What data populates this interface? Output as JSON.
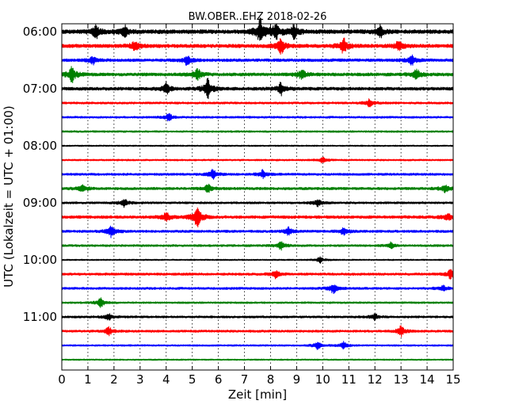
{
  "chart_data": {
    "type": "line",
    "title": "BW.OBER..EHZ 2018-02-26",
    "xlabel": "Zeit  [min]",
    "ylabel": "UTC (Lokalzeit = UTC + 01:00)",
    "xlim": [
      0,
      15
    ],
    "xticks": [
      "0",
      "1",
      "2",
      "3",
      "4",
      "5",
      "6",
      "7",
      "8",
      "9",
      "10",
      "11",
      "12",
      "13",
      "14",
      "15"
    ],
    "yticks": [
      {
        "label": "06:00",
        "row": 0
      },
      {
        "label": "07:00",
        "row": 4
      },
      {
        "label": "08:00",
        "row": 8
      },
      {
        "label": "09:00",
        "row": 12
      },
      {
        "label": "10:00",
        "row": 16
      },
      {
        "label": "11:00",
        "row": 20
      }
    ],
    "row_minutes": 15,
    "row_colors": [
      "#000000",
      "#ff0000",
      "#0000ff",
      "#008000"
    ],
    "grid": {
      "x": true,
      "y": false
    },
    "series": [
      {
        "start": "06:00",
        "amp": 0.28,
        "events": [
          {
            "t": 1.3,
            "a": 0.7
          },
          {
            "t": 2.4,
            "a": 0.6
          },
          {
            "t": 7.6,
            "a": 1.3
          },
          {
            "t": 8.2,
            "a": 0.9
          },
          {
            "t": 8.9,
            "a": 0.7
          },
          {
            "t": 12.2,
            "a": 0.6
          }
        ]
      },
      {
        "start": "06:15",
        "amp": 0.25,
        "events": [
          {
            "t": 2.8,
            "a": 0.5
          },
          {
            "t": 8.4,
            "a": 0.8
          },
          {
            "t": 10.8,
            "a": 0.8
          },
          {
            "t": 12.9,
            "a": 0.5
          }
        ]
      },
      {
        "start": "06:30",
        "amp": 0.2,
        "events": [
          {
            "t": 1.2,
            "a": 0.4
          },
          {
            "t": 4.8,
            "a": 0.5
          },
          {
            "t": 13.4,
            "a": 0.5
          }
        ]
      },
      {
        "start": "06:45",
        "amp": 0.22,
        "events": [
          {
            "t": 0.4,
            "a": 0.8
          },
          {
            "t": 5.2,
            "a": 0.6
          },
          {
            "t": 9.2,
            "a": 0.5
          },
          {
            "t": 13.6,
            "a": 0.5
          }
        ]
      },
      {
        "start": "07:00",
        "amp": 0.22,
        "events": [
          {
            "t": 4.0,
            "a": 0.6
          },
          {
            "t": 5.6,
            "a": 1.0
          },
          {
            "t": 8.4,
            "a": 0.6
          }
        ]
      },
      {
        "start": "07:15",
        "amp": 0.15,
        "events": [
          {
            "t": 11.8,
            "a": 0.4
          }
        ]
      },
      {
        "start": "07:30",
        "amp": 0.14,
        "events": [
          {
            "t": 4.1,
            "a": 0.4
          }
        ]
      },
      {
        "start": "07:45",
        "amp": 0.13,
        "events": []
      },
      {
        "start": "08:00",
        "amp": 0.1,
        "events": []
      },
      {
        "start": "08:15",
        "amp": 0.12,
        "events": [
          {
            "t": 10.0,
            "a": 0.3
          }
        ]
      },
      {
        "start": "08:30",
        "amp": 0.16,
        "events": [
          {
            "t": 5.8,
            "a": 0.5
          },
          {
            "t": 7.7,
            "a": 0.4
          }
        ]
      },
      {
        "start": "08:45",
        "amp": 0.18,
        "events": [
          {
            "t": 0.8,
            "a": 0.4
          },
          {
            "t": 5.6,
            "a": 0.4
          },
          {
            "t": 14.7,
            "a": 0.4
          }
        ]
      },
      {
        "start": "09:00",
        "amp": 0.15,
        "events": [
          {
            "t": 2.4,
            "a": 0.4
          },
          {
            "t": 9.8,
            "a": 0.4
          }
        ]
      },
      {
        "start": "09:15",
        "amp": 0.2,
        "events": [
          {
            "t": 4.0,
            "a": 0.5
          },
          {
            "t": 5.2,
            "a": 1.2
          },
          {
            "t": 14.8,
            "a": 0.4
          }
        ]
      },
      {
        "start": "09:30",
        "amp": 0.17,
        "events": [
          {
            "t": 1.9,
            "a": 0.6
          },
          {
            "t": 8.7,
            "a": 0.4
          },
          {
            "t": 10.8,
            "a": 0.4
          }
        ]
      },
      {
        "start": "09:45",
        "amp": 0.15,
        "events": [
          {
            "t": 8.4,
            "a": 0.4
          },
          {
            "t": 12.6,
            "a": 0.3
          }
        ]
      },
      {
        "start": "10:00",
        "amp": 0.1,
        "events": [
          {
            "t": 9.9,
            "a": 0.3
          }
        ]
      },
      {
        "start": "10:15",
        "amp": 0.17,
        "events": [
          {
            "t": 8.2,
            "a": 0.4
          },
          {
            "t": 14.9,
            "a": 0.5
          }
        ]
      },
      {
        "start": "10:30",
        "amp": 0.16,
        "events": [
          {
            "t": 10.4,
            "a": 0.5
          },
          {
            "t": 14.6,
            "a": 0.3
          }
        ]
      },
      {
        "start": "10:45",
        "amp": 0.13,
        "events": [
          {
            "t": 1.5,
            "a": 0.5
          }
        ]
      },
      {
        "start": "11:00",
        "amp": 0.15,
        "events": [
          {
            "t": 1.8,
            "a": 0.3
          },
          {
            "t": 12.0,
            "a": 0.3
          }
        ]
      },
      {
        "start": "11:15",
        "amp": 0.16,
        "events": [
          {
            "t": 1.8,
            "a": 0.4
          },
          {
            "t": 13.0,
            "a": 0.5
          }
        ]
      },
      {
        "start": "11:30",
        "amp": 0.12,
        "events": [
          {
            "t": 9.8,
            "a": 0.4
          },
          {
            "t": 10.8,
            "a": 0.4
          }
        ]
      },
      {
        "start": "11:45",
        "amp": 0.1,
        "events": []
      }
    ]
  }
}
